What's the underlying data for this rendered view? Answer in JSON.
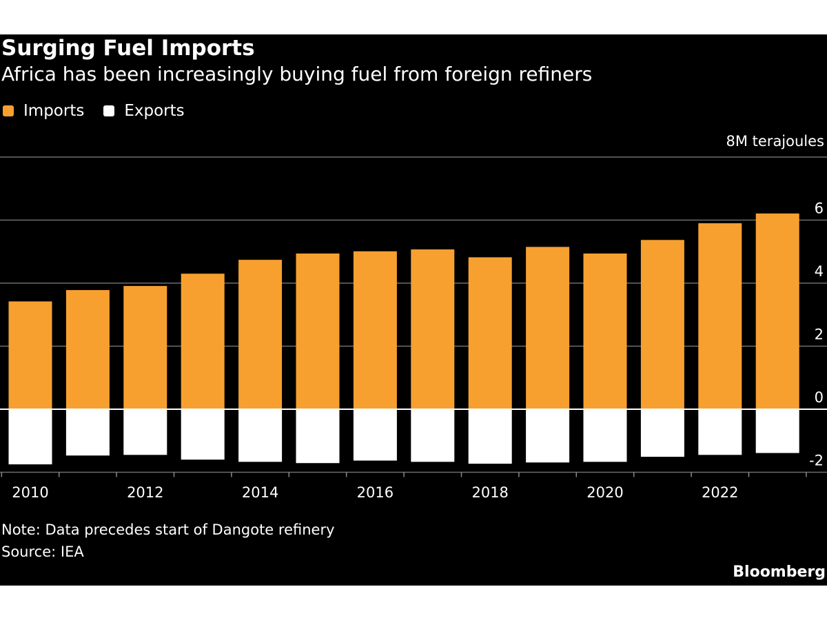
{
  "title": "Surging Fuel Imports",
  "subtitle": "Africa has been increasingly buying fuel from foreign refiners",
  "legend": [
    {
      "label": "Imports",
      "color": "#f7a030"
    },
    {
      "label": "Exports",
      "color": "#ffffff"
    }
  ],
  "unit_label": "8M terajoules",
  "note": "Note: Data precedes start of Dangote refinery",
  "source": "Source: IEA",
  "brand": "Bloomberg",
  "chart_data": {
    "type": "bar",
    "categories": [
      "2010",
      "2011",
      "2012",
      "2013",
      "2014",
      "2015",
      "2016",
      "2017",
      "2018",
      "2019",
      "2020",
      "2021",
      "2022",
      "2023"
    ],
    "series": [
      {
        "name": "Imports",
        "color": "#f7a030",
        "values": [
          3.42,
          3.78,
          3.91,
          4.3,
          4.74,
          4.94,
          5.01,
          5.07,
          4.82,
          5.15,
          4.94,
          5.37,
          5.9,
          6.21
        ]
      },
      {
        "name": "Exports",
        "color": "#ffffff",
        "values": [
          -1.75,
          -1.47,
          -1.45,
          -1.6,
          -1.67,
          -1.71,
          -1.63,
          -1.67,
          -1.73,
          -1.69,
          -1.67,
          -1.51,
          -1.45,
          -1.39
        ]
      }
    ],
    "ylim": [
      -2,
      8
    ],
    "yticks": [
      -2,
      0,
      2,
      4,
      6
    ],
    "top_tick_label": "8M terajoules",
    "xtick_labels": [
      "2010",
      "2012",
      "2014",
      "2016",
      "2018",
      "2020",
      "2022"
    ],
    "grid": true,
    "legend_position": "top-left"
  }
}
